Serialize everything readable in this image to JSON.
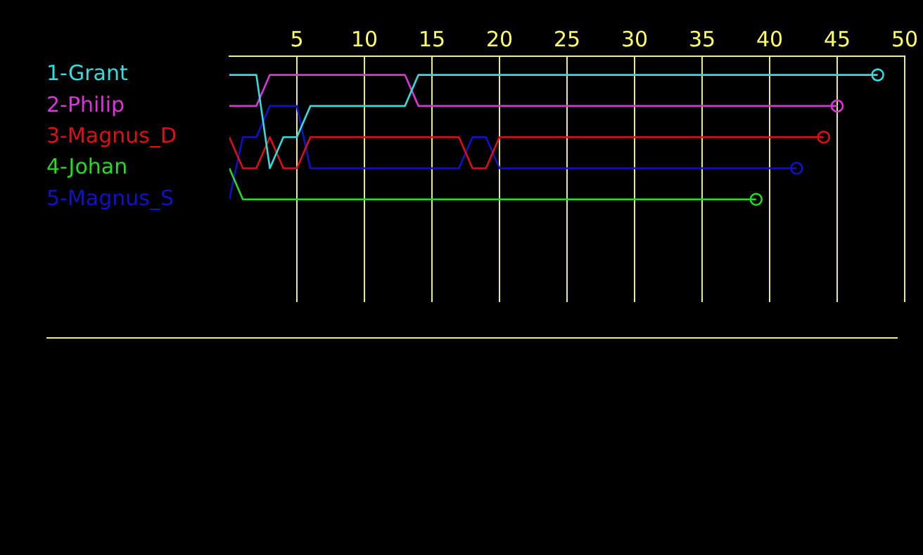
{
  "chart_data": {
    "type": "line",
    "x": [
      0,
      1,
      2,
      3,
      4,
      5,
      6,
      7,
      8,
      9,
      10,
      11,
      12,
      13,
      14,
      15,
      16,
      17,
      18,
      19,
      20,
      21,
      22,
      23,
      24,
      25,
      26,
      27,
      28,
      29,
      30,
      31,
      32,
      33,
      34,
      35,
      36,
      37,
      38,
      39,
      40,
      41,
      42,
      43,
      44,
      45,
      46,
      47,
      48
    ],
    "series": [
      {
        "color": "#33dddd",
        "values": [
          1,
          1,
          1,
          4,
          3,
          3,
          2,
          2,
          2,
          2,
          2,
          2,
          2,
          2,
          1,
          1,
          1,
          1,
          1,
          1,
          1,
          1,
          1,
          1,
          1,
          1,
          1,
          1,
          1,
          1,
          1,
          1,
          1,
          1,
          1,
          1,
          1,
          1,
          1,
          1,
          1,
          1,
          1,
          1,
          1,
          1,
          1,
          1,
          1
        ]
      },
      {
        "color": "#dd33dd",
        "values": [
          2,
          2,
          2,
          1,
          1,
          1,
          1,
          1,
          1,
          1,
          1,
          1,
          1,
          1,
          2,
          2,
          2,
          2,
          2,
          2,
          2,
          2,
          2,
          2,
          2,
          2,
          2,
          2,
          2,
          2,
          2,
          2,
          2,
          2,
          2,
          2,
          2,
          2,
          2,
          2,
          2,
          2,
          2,
          2,
          2,
          2,
          null,
          null,
          null
        ]
      },
      {
        "color": "#dd1111",
        "values": [
          3,
          4,
          4,
          3,
          4,
          4,
          3,
          3,
          3,
          3,
          3,
          3,
          3,
          3,
          3,
          3,
          3,
          3,
          4,
          4,
          3,
          3,
          3,
          3,
          3,
          3,
          3,
          3,
          3,
          3,
          3,
          3,
          3,
          3,
          3,
          3,
          3,
          3,
          3,
          3,
          3,
          3,
          3,
          3,
          3,
          null,
          null,
          null,
          null
        ]
      },
      {
        "color": "#22dd22",
        "values": [
          4,
          5,
          5,
          5,
          5,
          5,
          5,
          5,
          5,
          5,
          5,
          5,
          5,
          5,
          5,
          5,
          5,
          5,
          5,
          5,
          5,
          5,
          5,
          5,
          5,
          5,
          5,
          5,
          5,
          5,
          5,
          5,
          5,
          5,
          5,
          5,
          5,
          5,
          5,
          5,
          null,
          null,
          null,
          null,
          null,
          null,
          null,
          null,
          null
        ]
      },
      {
        "color": "#1111cc",
        "values": [
          5,
          3,
          3,
          2,
          2,
          2,
          4,
          4,
          4,
          4,
          4,
          4,
          4,
          4,
          4,
          4,
          4,
          4,
          3,
          3,
          4,
          4,
          4,
          4,
          4,
          4,
          4,
          4,
          4,
          4,
          4,
          4,
          4,
          4,
          4,
          4,
          4,
          4,
          4,
          4,
          4,
          4,
          4,
          null,
          null,
          null,
          null,
          null,
          null
        ]
      }
    ],
    "xlim": [
      0,
      50
    ],
    "xticks": [
      5,
      10,
      15,
      20,
      25,
      30,
      35,
      40,
      45,
      50
    ],
    "ylim": [
      8.3,
      0.4
    ],
    "yticks": [
      {
        "value": 1,
        "label": "1-Grant"
      },
      {
        "value": 2,
        "label": "2-Philip"
      },
      {
        "value": 3,
        "label": "3-Magnus_D"
      },
      {
        "value": 4,
        "label": "4-Johan"
      },
      {
        "value": 5,
        "label": "5-Magnus_S"
      }
    ],
    "grid": "x",
    "line_style": "solid"
  }
}
